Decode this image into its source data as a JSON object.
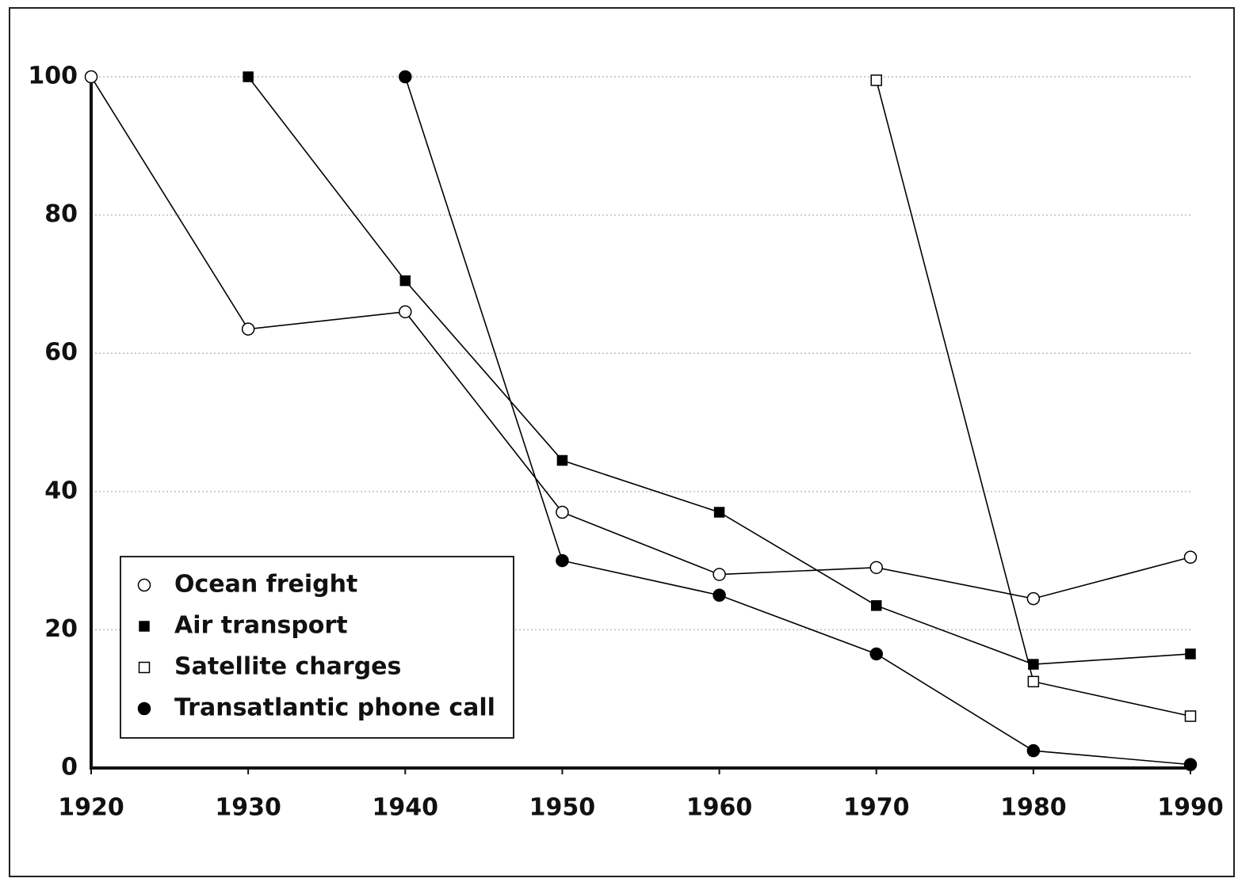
{
  "chart_data": {
    "type": "line",
    "x": [
      1920,
      1930,
      1940,
      1950,
      1960,
      1970,
      1980,
      1990
    ],
    "xlim": [
      1920,
      1990
    ],
    "xticks": [
      1920,
      1930,
      1940,
      1950,
      1960,
      1970,
      1980,
      1990
    ],
    "ylim": [
      0,
      100
    ],
    "yticks": [
      0,
      20,
      40,
      60,
      80,
      100
    ],
    "grid": true,
    "legend": "lower left",
    "series": [
      {
        "name": "Ocean freight",
        "color": "#000000",
        "marker": "circle-open",
        "values": [
          100,
          63.5,
          66,
          37,
          28,
          29,
          24.5,
          30.5
        ]
      },
      {
        "name": "Air transport",
        "color": "#000000",
        "marker": "square-filled",
        "values": [
          null,
          100,
          70.5,
          44.5,
          37,
          23.5,
          15,
          16.5
        ]
      },
      {
        "name": "Satellite charges",
        "color": "#000000",
        "marker": "square-open",
        "values": [
          null,
          null,
          null,
          null,
          null,
          99.5,
          12.5,
          7.5
        ]
      },
      {
        "name": "Transatlantic phone call",
        "color": "#000000",
        "marker": "circle-filled",
        "values": [
          null,
          null,
          100,
          30,
          25,
          16.5,
          2.5,
          0.5
        ]
      }
    ]
  }
}
